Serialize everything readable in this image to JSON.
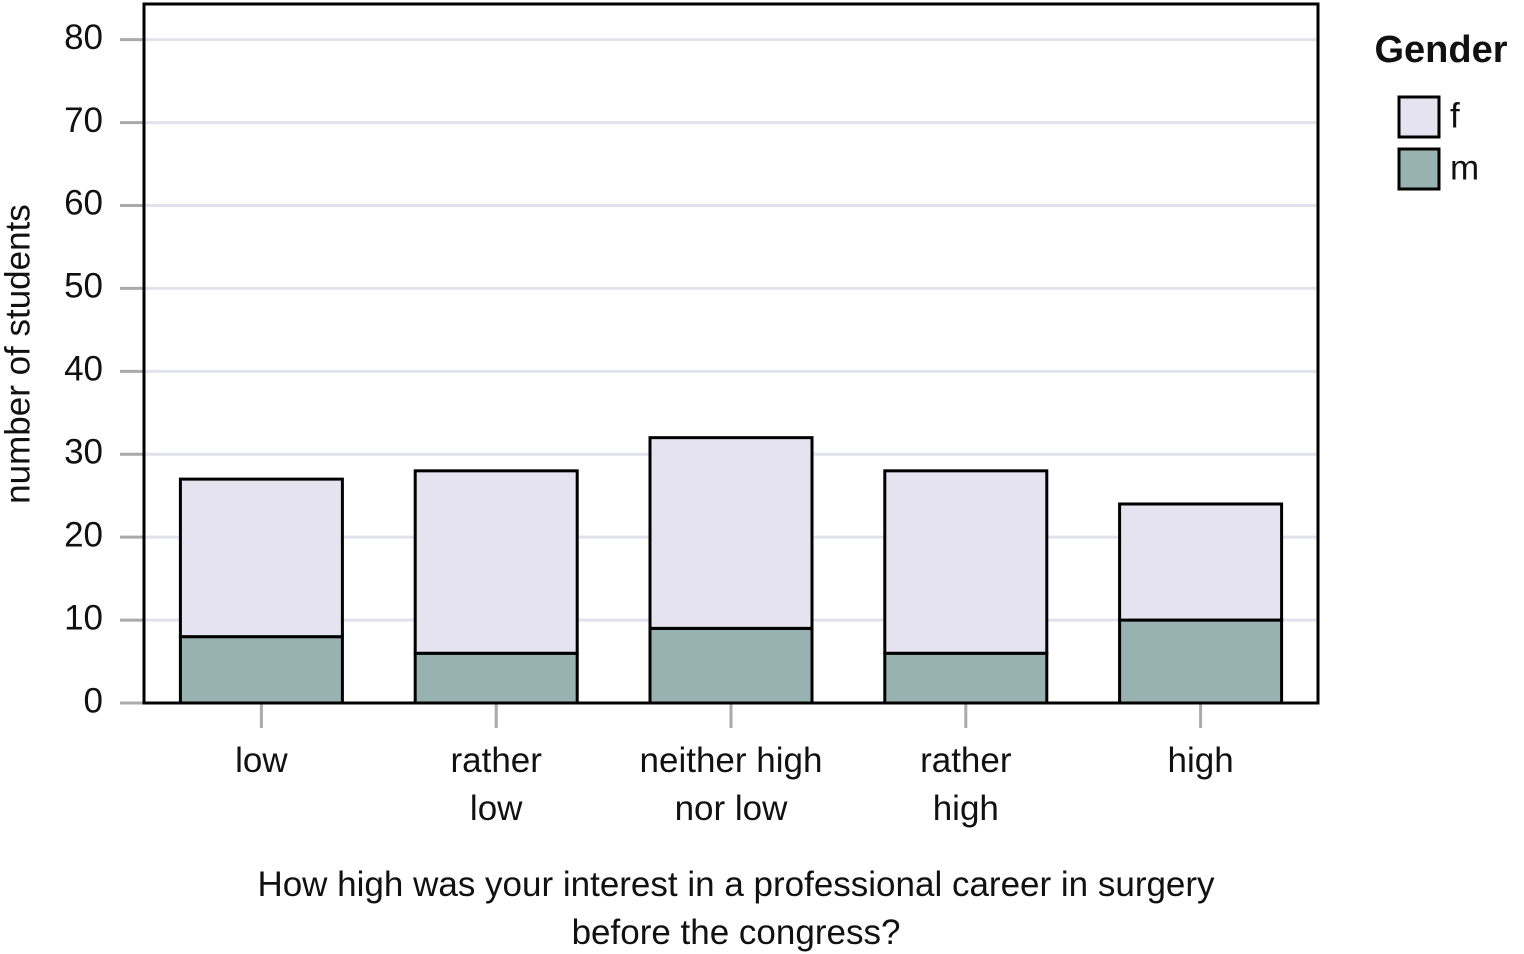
{
  "chart_data": {
    "type": "bar",
    "stacked": true,
    "x_label": "How high was your interest in a professional career in surgery\nbefore the congress?",
    "y_label": "number of students",
    "categories": [
      "low",
      "rather\nlow",
      "neither high\nnor low",
      "rather\nhigh",
      "high"
    ],
    "series": [
      {
        "name": "m",
        "color": "#98b2b1",
        "values": [
          8,
          6,
          9,
          6,
          10
        ]
      },
      {
        "name": "f",
        "color": "#e5e3f0",
        "values": [
          19,
          22,
          23,
          22,
          14
        ]
      }
    ],
    "ylim": [
      0,
      84.3
    ],
    "yticks": [
      0,
      10,
      20,
      30,
      40,
      50,
      60,
      70,
      80
    ],
    "grid": true,
    "legend_title": "Gender",
    "legend_position": "right"
  }
}
